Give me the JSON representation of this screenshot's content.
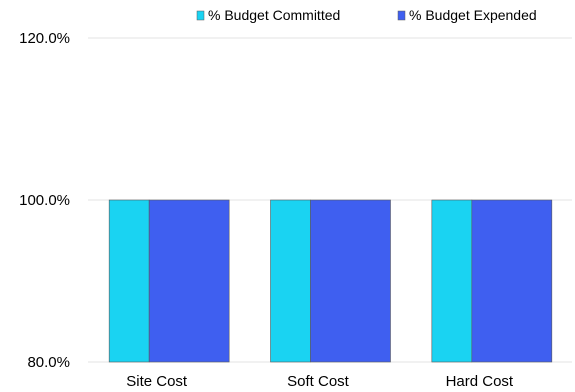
{
  "chart_data": {
    "type": "bar",
    "categories": [
      "Site Cost",
      "Soft Cost",
      "Hard Cost"
    ],
    "series": [
      {
        "name": "% Budget Committed",
        "color": "#1ad3f2",
        "values": [
          100.0,
          100.0,
          100.0
        ]
      },
      {
        "name": "% Budget Expended",
        "color": "#3f5ff0",
        "values": [
          100.0,
          100.0,
          100.0
        ]
      }
    ],
    "ylim": [
      80,
      120
    ],
    "yticks": [
      {
        "value": 80,
        "label": "80.0%"
      },
      {
        "value": 100,
        "label": "100.0%"
      },
      {
        "value": 120,
        "label": "120.0%"
      }
    ],
    "legend_position": "top-right",
    "grid": true
  }
}
